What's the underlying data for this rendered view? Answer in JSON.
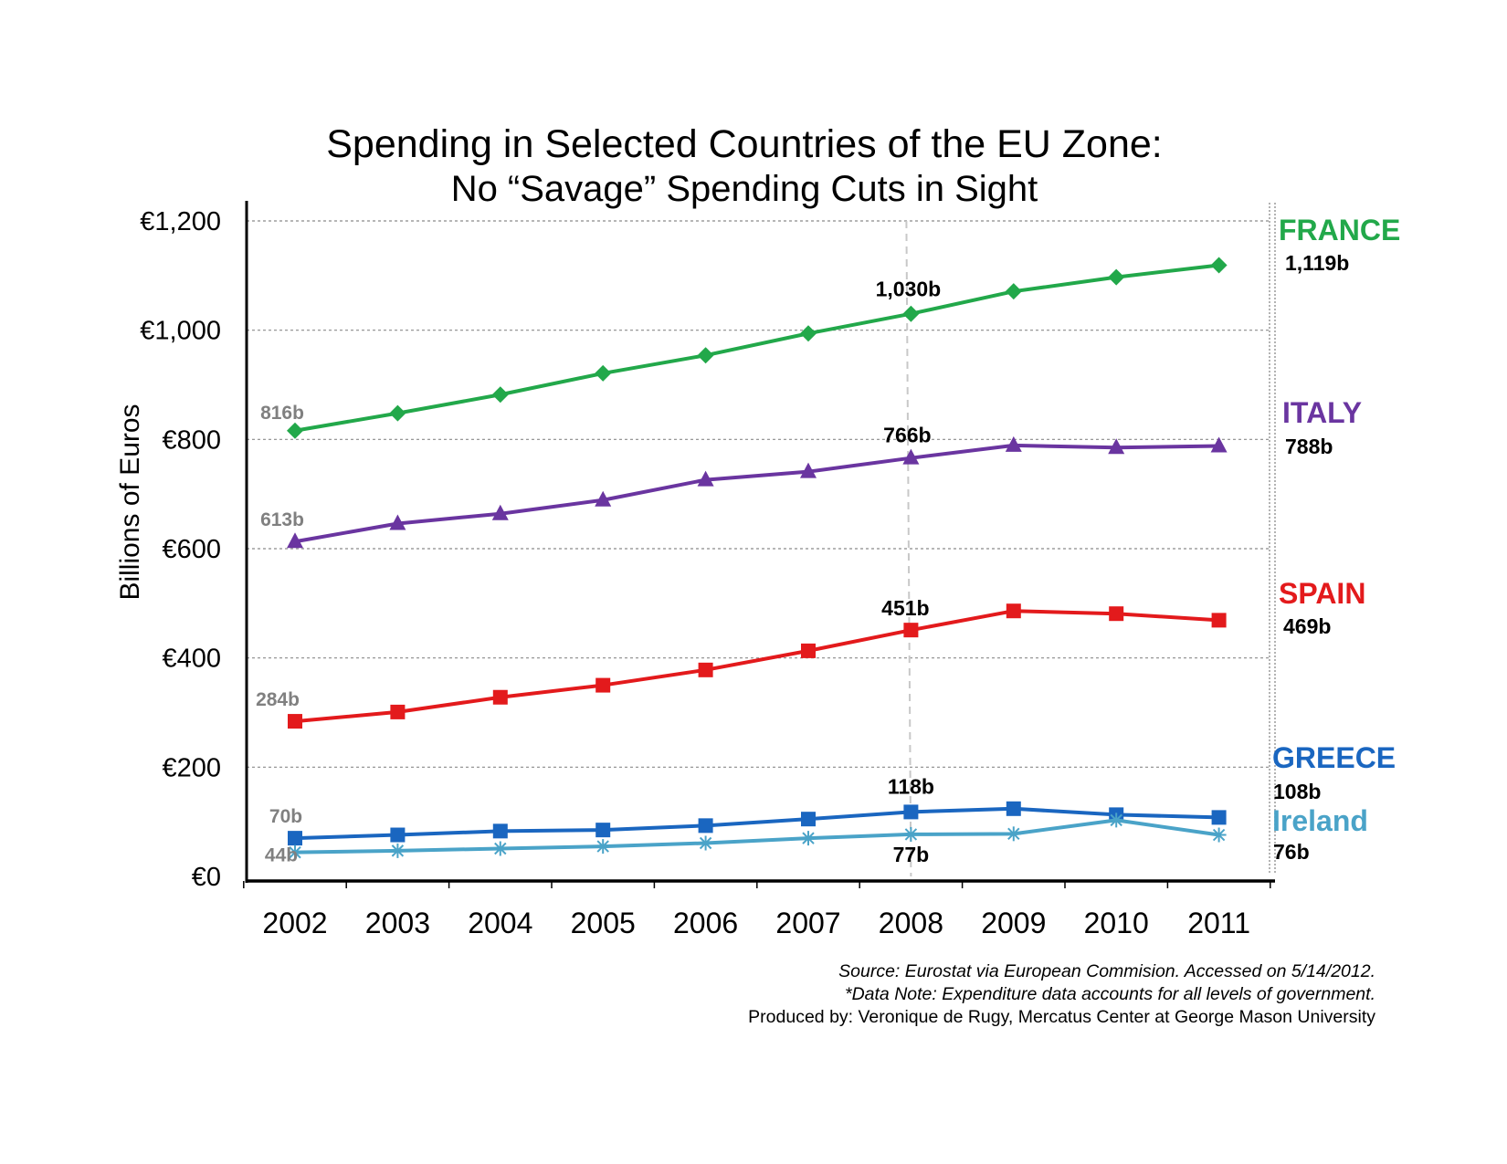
{
  "chart_data": {
    "type": "line",
    "title": "Spending in Selected Countries of the EU Zone:",
    "subtitle": "No “Savage” Spending Cuts in Sight",
    "ylabel": "Billions of Euros",
    "xlabel": "",
    "ylim": [
      0,
      1200
    ],
    "y_ticks": [
      0,
      200,
      400,
      600,
      800,
      1000,
      1200
    ],
    "y_tick_labels": [
      "€0",
      "€200",
      "€400",
      "€600",
      "€800",
      "€1,000",
      "€1,200"
    ],
    "categories": [
      "2002",
      "2003",
      "2004",
      "2005",
      "2006",
      "2007",
      "2008",
      "2009",
      "2010",
      "2011"
    ],
    "highlight_year": "2008",
    "grid": "horizontal dashed",
    "series": [
      {
        "name": "FRANCE",
        "color": "#22a84a",
        "marker": "diamond",
        "values": [
          816,
          848,
          882,
          921,
          954,
          994,
          1030,
          1071,
          1097,
          1119
        ],
        "start_label": "816b",
        "mid_label": "1,030b",
        "end_value_label": "1,119b"
      },
      {
        "name": "ITALY",
        "color": "#6a35a0",
        "marker": "triangle",
        "values": [
          613,
          646,
          664,
          689,
          726,
          741,
          766,
          789,
          785,
          788
        ],
        "start_label": "613b",
        "mid_label": "766b",
        "end_value_label": "788b"
      },
      {
        "name": "SPAIN",
        "color": "#e31a1c",
        "marker": "square",
        "values": [
          284,
          301,
          328,
          350,
          378,
          413,
          451,
          486,
          481,
          469
        ],
        "start_label": "284b",
        "mid_label": "451b",
        "end_value_label": "469b"
      },
      {
        "name": "GREECE",
        "color": "#1a66c0",
        "marker": "square",
        "values": [
          70,
          76,
          83,
          85,
          93,
          105,
          118,
          124,
          113,
          108
        ],
        "start_label": "70b",
        "mid_label": "118b",
        "end_value_label": "108b"
      },
      {
        "name": "Ireland",
        "color": "#4aa3c8",
        "marker": "asterisk",
        "values": [
          44,
          47,
          51,
          55,
          61,
          70,
          77,
          78,
          103,
          76
        ],
        "start_label": "44b",
        "mid_label": "77b",
        "end_value_label": "76b"
      }
    ]
  },
  "footer": {
    "source": "Source: Eurostat via European Commision. Accessed on 5/14/2012.",
    "note": "*Data Note: Expenditure data accounts for all levels of government.",
    "credit": "Produced by: Veronique de Rugy, Mercatus Center at George Mason University"
  }
}
